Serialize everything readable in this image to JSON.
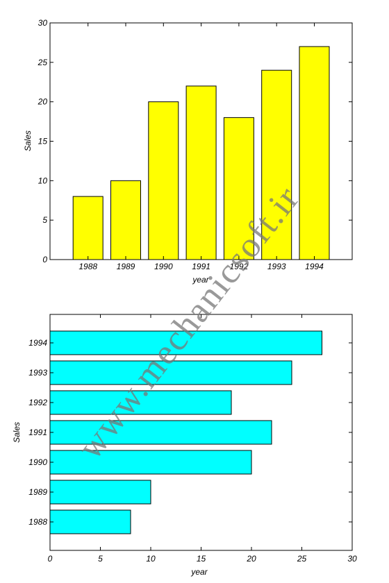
{
  "chart_data": [
    {
      "type": "bar",
      "orientation": "vertical",
      "categories": [
        "1988",
        "1989",
        "1990",
        "1991",
        "1992",
        "1993",
        "1994"
      ],
      "values": [
        8,
        10,
        20,
        22,
        18,
        24,
        27
      ],
      "xlabel": "year",
      "ylabel": "Sales",
      "ylim": [
        0,
        30
      ],
      "yticks": [
        0,
        5,
        10,
        15,
        20,
        25,
        30
      ],
      "bar_color": "#ffff00",
      "grid": false
    },
    {
      "type": "bar",
      "orientation": "horizontal",
      "categories": [
        "1988",
        "1989",
        "1990",
        "1991",
        "1992",
        "1993",
        "1994"
      ],
      "values": [
        8,
        10,
        20,
        22,
        18,
        24,
        27
      ],
      "xlabel": "year",
      "ylabel": "Sales",
      "xlim": [
        0,
        30
      ],
      "xticks": [
        0,
        5,
        10,
        15,
        20,
        25,
        30
      ],
      "bar_color": "#00ffff",
      "grid": false
    }
  ],
  "watermark": {
    "text": "www.mechanicsoft.ir"
  }
}
